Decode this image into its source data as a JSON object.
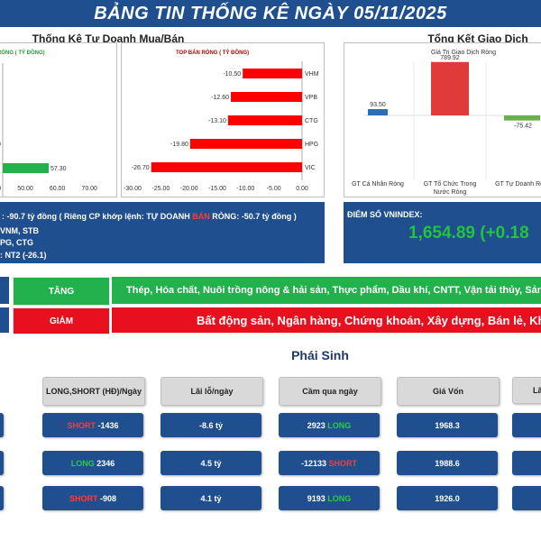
{
  "banner": {
    "title": "BẢNG TIN THỐNG KÊ NGÀY 05/11/2025"
  },
  "left_section": {
    "title": "Thống Kê Tự Doanh Mua/Bán"
  },
  "buy_chart": {
    "title": "RÒNG ( TỶ ĐỒNG)",
    "values": [
      57.3
    ],
    "value_labels": [
      "57.30"
    ],
    "partial_label": "0",
    "ticks": [
      "30.00",
      "40.00",
      "50.00",
      "60.00",
      "70.00"
    ],
    "xlim": [
      25,
      75
    ],
    "bar_color": "#22b14c"
  },
  "sell_chart": {
    "title": "TOP BÁN RÒNG ( TỶ ĐỒNG)",
    "categories": [
      "VHM",
      "VPB",
      "CTG",
      "HPG",
      "VIC"
    ],
    "values": [
      -10.5,
      -12.6,
      -13.1,
      -19.8,
      -26.7
    ],
    "value_labels": [
      "-10.50",
      "-12.60",
      "-13.10",
      "-19.80",
      "-26.70"
    ],
    "ticks": [
      "-30.00",
      "-25.00",
      "-20.00",
      "-15.00",
      "-10.00",
      "-5.00",
      "0.00"
    ],
    "xlim": [
      -30,
      0
    ],
    "bar_color": "#ff0000"
  },
  "right_section": {
    "title": "Tổng Kết Giao Dịch"
  },
  "summary_chart": {
    "title": "Giá Trị Giao Dịch Ròng",
    "categories": [
      "GT Cá Nhân Ròng",
      "GT Tổ Chức Trong Nước Ròng",
      "GT Tự Doanh Ròng"
    ],
    "values": [
      93.5,
      789.92,
      -75.42
    ],
    "value_labels": [
      "93.50",
      "789.92",
      "-75.42"
    ],
    "colors": [
      "#2f6db5",
      "#e03a3a",
      "#6ab04c"
    ]
  },
  "info_panel": {
    "line1": ": -90.7 tỷ đồng ( Riêng CP khớp lệnh: TỰ DOANH ",
    "line1_highlight": "BÁN",
    "line1_end": " RÒNG: -50.7 tỷ đồng )",
    "line2": "VNM, STB",
    "line3": "PG, CTG",
    "line4": ": NT2 (-26.1)"
  },
  "vnindex": {
    "label": "ĐIỂM SỐ VNINDEX:",
    "value": "1,654.89 (+0.18"
  },
  "sectors": {
    "up_label": "TĂNG",
    "up_text": "Thép, Hóa chất, Nuôi trồng nông & hải sản, Thực phẩm, Dầu khí, CNTT, Vận tải thủy, Sản xuất &",
    "down_label": "GIẢM",
    "down_text": "Bất động sản, Ngân hàng, Chứng khoán, Xây dựng, Bán lẻ, Kho bã",
    "up_color": "#22b14c",
    "down_color": "#e8101e"
  },
  "derivatives": {
    "title": "Phái Sinh",
    "headers": [
      "LONG,SHORT (HĐ)/Ngày",
      "Lãi lỗ/ngày",
      "Cầm qua ngày",
      "Giá Vốn",
      "Lãi"
    ],
    "rows": [
      {
        "pos_type": "SHORT",
        "pos_value": "-1436",
        "pnl": "-8.6 tỷ",
        "hold_value": "2923",
        "hold_type": "LONG",
        "cost": "1968.3"
      },
      {
        "pos_type": "LONG",
        "pos_value": "2346",
        "pnl": "4.5 tỷ",
        "hold_value": "-12133",
        "hold_type": "SHORT",
        "cost": "1988.6"
      },
      {
        "pos_type": "SHORT",
        "pos_value": "-908",
        "pnl": "4.1 tỷ",
        "hold_value": "9193",
        "hold_type": "LONG",
        "cost": "1926.0"
      }
    ]
  }
}
